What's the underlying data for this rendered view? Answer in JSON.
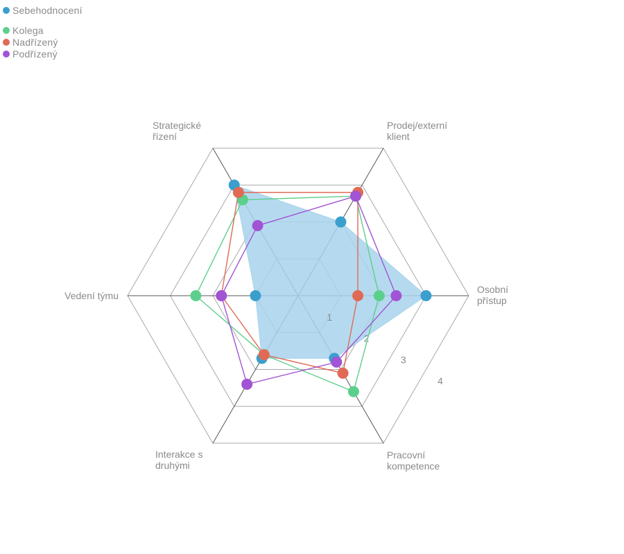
{
  "chart_data": {
    "type": "radar",
    "axes": [
      {
        "label_lines": [
          "Osobní",
          "přístup"
        ]
      },
      {
        "label_lines": [
          "Pracovní",
          "kompetence"
        ]
      },
      {
        "label_lines": [
          "Interakce s",
          "druhými"
        ]
      },
      {
        "label_lines": [
          "Vedení týmu"
        ]
      },
      {
        "label_lines": [
          "Strategické",
          "řízení"
        ]
      },
      {
        "label_lines": [
          "Prodej/externí",
          "klient"
        ]
      }
    ],
    "rlim": [
      0,
      4
    ],
    "tick_labels": [
      "1",
      "2",
      "3",
      "4"
    ],
    "grid": true,
    "legend_position": "top-left",
    "series": [
      {
        "name": "Sebehodnocení",
        "color": "#3b9fce",
        "fill": "#a8d3ec",
        "values": [
          3.0,
          1.7,
          1.7,
          1.0,
          3.0,
          2.0
        ]
      },
      {
        "name": "Kolega",
        "color": "#5dcf8c",
        "values": [
          1.9,
          2.6,
          1.6,
          2.4,
          2.6,
          2.7
        ]
      },
      {
        "name": "Nadřízený",
        "color": "#e06a56",
        "values": [
          1.4,
          2.1,
          1.6,
          1.8,
          2.8,
          2.8
        ]
      },
      {
        "name": "Podřízený",
        "color": "#a154d4",
        "values": [
          2.3,
          1.8,
          2.4,
          1.8,
          1.9,
          2.7
        ]
      }
    ]
  }
}
